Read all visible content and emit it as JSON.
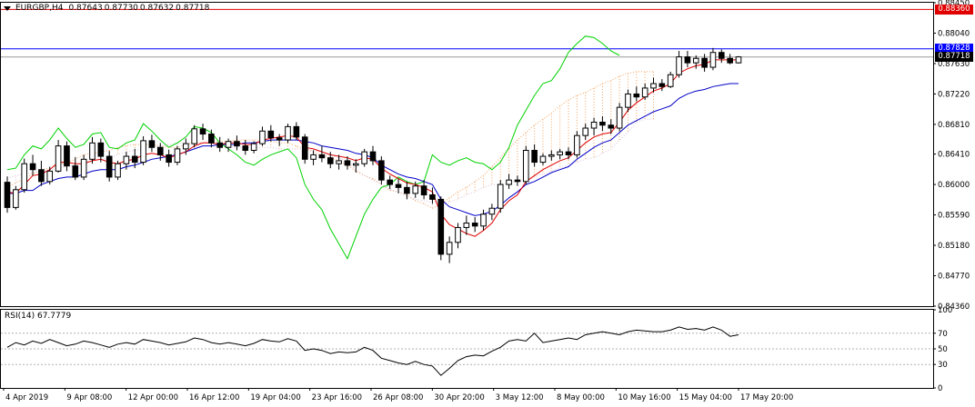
{
  "header": {
    "symbol": "EURGBP,H4",
    "open": "0.87643",
    "high": "0.87730",
    "low": "0.87632",
    "close": "0.87718"
  },
  "rsi_panel": {
    "label": "RSI(14)",
    "value": "67.7779"
  },
  "price_tags": [
    {
      "label": "0.88360",
      "color": "#e00000",
      "text_color": "#ffffff"
    },
    {
      "label": "0.87828",
      "color": "#0000ff",
      "text_color": "#ffffff"
    },
    {
      "label": "0.87718",
      "color": "#000000",
      "text_color": "#ffffff"
    }
  ],
  "chart_data": [
    {
      "type": "candlestick",
      "title": "EURGBP,H4",
      "y_ticks": [
        "0.88450",
        "0.88040",
        "0.87630",
        "0.87220",
        "0.86810",
        "0.86410",
        "0.86000",
        "0.85590",
        "0.85180",
        "0.84770",
        "0.84360"
      ],
      "y_tick_values": [
        0.8845,
        0.8804,
        0.8763,
        0.8722,
        0.8681,
        0.8641,
        0.86,
        0.8559,
        0.8518,
        0.8477,
        0.8436
      ],
      "ylim": [
        0.8436,
        0.8845
      ],
      "x_ticks": [
        "4 Apr 2019",
        "9 Apr 08:00",
        "12 Apr 00:00",
        "16 Apr 12:00",
        "19 Apr 04:00",
        "23 Apr 16:00",
        "26 Apr 08:00",
        "30 Apr 20:00",
        "3 May 12:00",
        "8 May 00:00",
        "10 May 16:00",
        "15 May 04:00",
        "17 May 20:00"
      ],
      "horizontal_lines": [
        {
          "value": 0.8836,
          "color": "#e00000"
        },
        {
          "value": 0.87828,
          "color": "#0000ff"
        },
        {
          "value": 0.87718,
          "color": "#999999"
        }
      ],
      "candles": [
        {
          "o": 0.8603,
          "h": 0.8611,
          "l": 0.8562,
          "c": 0.8569
        },
        {
          "o": 0.8569,
          "h": 0.8598,
          "l": 0.8566,
          "c": 0.8593
        },
        {
          "o": 0.8593,
          "h": 0.8635,
          "l": 0.8589,
          "c": 0.8628
        },
        {
          "o": 0.8628,
          "h": 0.864,
          "l": 0.8612,
          "c": 0.862
        },
        {
          "o": 0.862,
          "h": 0.8632,
          "l": 0.8598,
          "c": 0.8604
        },
        {
          "o": 0.8604,
          "h": 0.8624,
          "l": 0.86,
          "c": 0.8618
        },
        {
          "o": 0.8618,
          "h": 0.866,
          "l": 0.8616,
          "c": 0.8652
        },
        {
          "o": 0.8652,
          "h": 0.8658,
          "l": 0.8618,
          "c": 0.8625
        },
        {
          "o": 0.8625,
          "h": 0.8637,
          "l": 0.8606,
          "c": 0.861
        },
        {
          "o": 0.861,
          "h": 0.864,
          "l": 0.8606,
          "c": 0.8634
        },
        {
          "o": 0.8634,
          "h": 0.8664,
          "l": 0.8628,
          "c": 0.8656
        },
        {
          "o": 0.8656,
          "h": 0.8662,
          "l": 0.863,
          "c": 0.8638
        },
        {
          "o": 0.8638,
          "h": 0.8645,
          "l": 0.8604,
          "c": 0.861
        },
        {
          "o": 0.861,
          "h": 0.8632,
          "l": 0.8606,
          "c": 0.8628
        },
        {
          "o": 0.8628,
          "h": 0.8644,
          "l": 0.862,
          "c": 0.8638
        },
        {
          "o": 0.8638,
          "h": 0.8648,
          "l": 0.8622,
          "c": 0.863
        },
        {
          "o": 0.863,
          "h": 0.8665,
          "l": 0.8626,
          "c": 0.8659
        },
        {
          "o": 0.8659,
          "h": 0.8667,
          "l": 0.8644,
          "c": 0.865
        },
        {
          "o": 0.865,
          "h": 0.8656,
          "l": 0.8632,
          "c": 0.864
        },
        {
          "o": 0.864,
          "h": 0.8647,
          "l": 0.8624,
          "c": 0.863
        },
        {
          "o": 0.863,
          "h": 0.8652,
          "l": 0.8626,
          "c": 0.8648
        },
        {
          "o": 0.8648,
          "h": 0.8662,
          "l": 0.864,
          "c": 0.8655
        },
        {
          "o": 0.8655,
          "h": 0.868,
          "l": 0.865,
          "c": 0.8675
        },
        {
          "o": 0.8675,
          "h": 0.8682,
          "l": 0.866,
          "c": 0.8668
        },
        {
          "o": 0.8668,
          "h": 0.8674,
          "l": 0.865,
          "c": 0.8656
        },
        {
          "o": 0.8656,
          "h": 0.8664,
          "l": 0.8644,
          "c": 0.865
        },
        {
          "o": 0.865,
          "h": 0.8662,
          "l": 0.8644,
          "c": 0.8658
        },
        {
          "o": 0.8658,
          "h": 0.8666,
          "l": 0.8646,
          "c": 0.8652
        },
        {
          "o": 0.8652,
          "h": 0.866,
          "l": 0.864,
          "c": 0.8646
        },
        {
          "o": 0.8646,
          "h": 0.8658,
          "l": 0.8642,
          "c": 0.8655
        },
        {
          "o": 0.8655,
          "h": 0.8678,
          "l": 0.8652,
          "c": 0.8672
        },
        {
          "o": 0.8672,
          "h": 0.868,
          "l": 0.8658,
          "c": 0.8663
        },
        {
          "o": 0.8663,
          "h": 0.8668,
          "l": 0.8652,
          "c": 0.866
        },
        {
          "o": 0.866,
          "h": 0.8682,
          "l": 0.8656,
          "c": 0.8678
        },
        {
          "o": 0.8678,
          "h": 0.8684,
          "l": 0.866,
          "c": 0.8664
        },
        {
          "o": 0.8664,
          "h": 0.8668,
          "l": 0.8628,
          "c": 0.8634
        },
        {
          "o": 0.8634,
          "h": 0.8646,
          "l": 0.8626,
          "c": 0.864
        },
        {
          "o": 0.864,
          "h": 0.8652,
          "l": 0.863,
          "c": 0.8636
        },
        {
          "o": 0.8636,
          "h": 0.8644,
          "l": 0.8622,
          "c": 0.8628
        },
        {
          "o": 0.8628,
          "h": 0.864,
          "l": 0.862,
          "c": 0.8632
        },
        {
          "o": 0.8632,
          "h": 0.8638,
          "l": 0.862,
          "c": 0.8626
        },
        {
          "o": 0.8626,
          "h": 0.8634,
          "l": 0.8616,
          "c": 0.8628
        },
        {
          "o": 0.8628,
          "h": 0.8648,
          "l": 0.8624,
          "c": 0.8644
        },
        {
          "o": 0.8644,
          "h": 0.8652,
          "l": 0.8626,
          "c": 0.8632
        },
        {
          "o": 0.8632,
          "h": 0.8638,
          "l": 0.86,
          "c": 0.8606
        },
        {
          "o": 0.8606,
          "h": 0.8612,
          "l": 0.8594,
          "c": 0.86
        },
        {
          "o": 0.86,
          "h": 0.8608,
          "l": 0.8588,
          "c": 0.8596
        },
        {
          "o": 0.8596,
          "h": 0.8604,
          "l": 0.858,
          "c": 0.8588
        },
        {
          "o": 0.8588,
          "h": 0.8604,
          "l": 0.8582,
          "c": 0.8598
        },
        {
          "o": 0.8598,
          "h": 0.8606,
          "l": 0.858,
          "c": 0.8586
        },
        {
          "o": 0.8586,
          "h": 0.8596,
          "l": 0.8574,
          "c": 0.858
        },
        {
          "o": 0.858,
          "h": 0.8584,
          "l": 0.8498,
          "c": 0.8506
        },
        {
          "o": 0.8506,
          "h": 0.853,
          "l": 0.8494,
          "c": 0.8522
        },
        {
          "o": 0.8522,
          "h": 0.8548,
          "l": 0.8514,
          "c": 0.8542
        },
        {
          "o": 0.8542,
          "h": 0.8558,
          "l": 0.8532,
          "c": 0.8548
        },
        {
          "o": 0.8548,
          "h": 0.8556,
          "l": 0.8536,
          "c": 0.8544
        },
        {
          "o": 0.8544,
          "h": 0.8566,
          "l": 0.8538,
          "c": 0.856
        },
        {
          "o": 0.856,
          "h": 0.8574,
          "l": 0.8552,
          "c": 0.8568
        },
        {
          "o": 0.8568,
          "h": 0.8606,
          "l": 0.8562,
          "c": 0.86
        },
        {
          "o": 0.86,
          "h": 0.8614,
          "l": 0.8594,
          "c": 0.8606
        },
        {
          "o": 0.8606,
          "h": 0.8612,
          "l": 0.8598,
          "c": 0.8604
        },
        {
          "o": 0.8604,
          "h": 0.8652,
          "l": 0.86,
          "c": 0.8646
        },
        {
          "o": 0.8646,
          "h": 0.8654,
          "l": 0.8624,
          "c": 0.863
        },
        {
          "o": 0.863,
          "h": 0.8642,
          "l": 0.8626,
          "c": 0.8638
        },
        {
          "o": 0.8638,
          "h": 0.8646,
          "l": 0.8632,
          "c": 0.864
        },
        {
          "o": 0.864,
          "h": 0.8648,
          "l": 0.8634,
          "c": 0.8644
        },
        {
          "o": 0.8644,
          "h": 0.865,
          "l": 0.8634,
          "c": 0.864
        },
        {
          "o": 0.864,
          "h": 0.8672,
          "l": 0.8636,
          "c": 0.8666
        },
        {
          "o": 0.8666,
          "h": 0.8682,
          "l": 0.866,
          "c": 0.8676
        },
        {
          "o": 0.8676,
          "h": 0.869,
          "l": 0.8666,
          "c": 0.8684
        },
        {
          "o": 0.8684,
          "h": 0.8692,
          "l": 0.8672,
          "c": 0.868
        },
        {
          "o": 0.868,
          "h": 0.8688,
          "l": 0.8668,
          "c": 0.8676
        },
        {
          "o": 0.8676,
          "h": 0.871,
          "l": 0.8672,
          "c": 0.8704
        },
        {
          "o": 0.8704,
          "h": 0.8728,
          "l": 0.8698,
          "c": 0.8722
        },
        {
          "o": 0.8722,
          "h": 0.8732,
          "l": 0.8712,
          "c": 0.8718
        },
        {
          "o": 0.8718,
          "h": 0.8736,
          "l": 0.8714,
          "c": 0.873
        },
        {
          "o": 0.873,
          "h": 0.8744,
          "l": 0.8724,
          "c": 0.8736
        },
        {
          "o": 0.8736,
          "h": 0.8742,
          "l": 0.8726,
          "c": 0.8732
        },
        {
          "o": 0.8732,
          "h": 0.8752,
          "l": 0.873,
          "c": 0.8748
        },
        {
          "o": 0.8748,
          "h": 0.878,
          "l": 0.8744,
          "c": 0.8772
        },
        {
          "o": 0.8772,
          "h": 0.878,
          "l": 0.8758,
          "c": 0.8764
        },
        {
          "o": 0.8764,
          "h": 0.8774,
          "l": 0.8756,
          "c": 0.877
        },
        {
          "o": 0.877,
          "h": 0.8776,
          "l": 0.8752,
          "c": 0.8758
        },
        {
          "o": 0.8758,
          "h": 0.8784,
          "l": 0.8754,
          "c": 0.8778
        },
        {
          "o": 0.8778,
          "h": 0.8782,
          "l": 0.8764,
          "c": 0.877
        },
        {
          "o": 0.877,
          "h": 0.8776,
          "l": 0.8762,
          "c": 0.8764
        },
        {
          "o": 0.8764,
          "h": 0.8773,
          "l": 0.8763,
          "c": 0.8772
        }
      ],
      "tenkan_sen": [
        0.859,
        0.8588,
        0.86,
        0.8612,
        0.8614,
        0.862,
        0.863,
        0.863,
        0.8628,
        0.8628,
        0.8632,
        0.8634,
        0.863,
        0.8628,
        0.8632,
        0.8634,
        0.864,
        0.8642,
        0.864,
        0.8636,
        0.864,
        0.8644,
        0.8652,
        0.8656,
        0.8656,
        0.8654,
        0.8656,
        0.8656,
        0.8654,
        0.8654,
        0.866,
        0.8662,
        0.8664,
        0.8666,
        0.8664,
        0.865,
        0.8648,
        0.8644,
        0.864,
        0.8638,
        0.8636,
        0.8632,
        0.8636,
        0.8634,
        0.8622,
        0.8614,
        0.8608,
        0.8602,
        0.86,
        0.8596,
        0.859,
        0.856,
        0.8546,
        0.854,
        0.8534,
        0.853,
        0.8538,
        0.8548,
        0.8566,
        0.8578,
        0.8586,
        0.8604,
        0.8612,
        0.862,
        0.8626,
        0.8632,
        0.8636,
        0.8646,
        0.8656,
        0.8664,
        0.8668,
        0.867,
        0.8684,
        0.87,
        0.871,
        0.8718,
        0.8726,
        0.873,
        0.8736,
        0.875,
        0.8756,
        0.876,
        0.8762,
        0.8768,
        0.8768,
        0.8768,
        0.8768
      ],
      "kijun_sen": [
        0.8588,
        0.8588,
        0.8592,
        0.8592,
        0.86,
        0.8604,
        0.8608,
        0.861,
        0.861,
        0.8614,
        0.8618,
        0.862,
        0.862,
        0.862,
        0.8624,
        0.8626,
        0.863,
        0.8634,
        0.8636,
        0.8638,
        0.864,
        0.8644,
        0.8648,
        0.8652,
        0.8652,
        0.8654,
        0.8654,
        0.8654,
        0.8656,
        0.8656,
        0.8658,
        0.866,
        0.866,
        0.866,
        0.866,
        0.8658,
        0.8656,
        0.8652,
        0.865,
        0.8648,
        0.8646,
        0.8642,
        0.864,
        0.8636,
        0.8626,
        0.862,
        0.8614,
        0.861,
        0.8608,
        0.8604,
        0.86,
        0.858,
        0.857,
        0.8566,
        0.8562,
        0.8558,
        0.856,
        0.8564,
        0.8572,
        0.8582,
        0.859,
        0.86,
        0.8604,
        0.861,
        0.8616,
        0.862,
        0.8624,
        0.8634,
        0.8642,
        0.865,
        0.8656,
        0.866,
        0.867,
        0.868,
        0.8686,
        0.8692,
        0.8698,
        0.8702,
        0.8706,
        0.8716,
        0.8722,
        0.8726,
        0.8728,
        0.8732,
        0.8734,
        0.8736,
        0.8736
      ],
      "chikou_span": [
        0.862,
        0.8622,
        0.864,
        0.8652,
        0.8648,
        0.866,
        0.8676,
        0.8662,
        0.865,
        0.8654,
        0.8668,
        0.867,
        0.865,
        0.8648,
        0.8656,
        0.866,
        0.8682,
        0.8672,
        0.866,
        0.865,
        0.8656,
        0.8664,
        0.8678,
        0.8676,
        0.867,
        0.8656,
        0.8648,
        0.864,
        0.863,
        0.8626,
        0.8634,
        0.864,
        0.8644,
        0.8648,
        0.8636,
        0.86,
        0.858,
        0.8566,
        0.854,
        0.852,
        0.85,
        0.853,
        0.856,
        0.858,
        0.8596,
        0.86,
        0.861,
        0.8604,
        0.86,
        0.8604,
        0.864,
        0.863,
        0.8626,
        0.8632,
        0.8636,
        0.863,
        0.8628,
        0.862,
        0.863,
        0.865,
        0.868,
        0.87,
        0.872,
        0.8736,
        0.874,
        0.8756,
        0.8778,
        0.879,
        0.88,
        0.8798,
        0.879,
        0.878,
        0.8774
      ],
      "senkou_span_a": [
        0.8598,
        0.8598,
        0.8596,
        0.8596,
        0.859,
        0.8586,
        0.858,
        0.8578,
        0.8586,
        0.859,
        0.8596,
        0.8602,
        0.8608,
        0.8614,
        0.862,
        0.8622,
        0.8626,
        0.863,
        0.8634,
        0.864,
        0.8642,
        0.8644,
        0.8646,
        0.865,
        0.8652,
        0.8654,
        0.8654,
        0.8654,
        0.8652,
        0.865,
        0.865,
        0.8654,
        0.8656,
        0.8656,
        0.8658,
        0.8658,
        0.8658,
        0.866,
        0.866,
        0.866,
        0.866,
        0.8658,
        0.8656,
        0.8656,
        0.8652,
        0.8648,
        0.8644,
        0.864,
        0.8636,
        0.8632,
        0.8626,
        0.8618,
        0.8612,
        0.8608,
        0.86,
        0.8592,
        0.859,
        0.8586,
        0.8578,
        0.8574,
        0.8568,
        0.8574,
        0.8582,
        0.859,
        0.8596,
        0.8604,
        0.8612,
        0.8624,
        0.8636,
        0.8648,
        0.866,
        0.867,
        0.868,
        0.8688,
        0.8696,
        0.8706,
        0.8714,
        0.872,
        0.8724,
        0.873,
        0.8736,
        0.874,
        0.8746,
        0.875,
        0.8752,
        0.8752,
        0.8752
      ],
      "senkou_span_b": [
        0.8588,
        0.8588,
        0.8588,
        0.8588,
        0.8588,
        0.8588,
        0.8592,
        0.8596,
        0.86,
        0.8604,
        0.8608,
        0.8612,
        0.8614,
        0.8616,
        0.8618,
        0.862,
        0.8622,
        0.8624,
        0.8626,
        0.863,
        0.8632,
        0.8634,
        0.8636,
        0.864,
        0.8644,
        0.8646,
        0.8648,
        0.865,
        0.8652,
        0.8654,
        0.8656,
        0.8656,
        0.8656,
        0.8656,
        0.8656,
        0.8654,
        0.8652,
        0.865,
        0.865,
        0.865,
        0.865,
        0.865,
        0.8648,
        0.8648,
        0.8648,
        0.8648,
        0.8646,
        0.8644,
        0.864,
        0.8636,
        0.863,
        0.862,
        0.8612,
        0.8606,
        0.86,
        0.8594,
        0.859,
        0.8584,
        0.858,
        0.8578,
        0.8576,
        0.8576,
        0.8576,
        0.858,
        0.8586,
        0.859,
        0.8596,
        0.86,
        0.86,
        0.8602,
        0.8604,
        0.8606,
        0.861,
        0.8614,
        0.8618,
        0.8622,
        0.8626,
        0.863,
        0.8634,
        0.8636,
        0.8642,
        0.8648,
        0.866,
        0.867,
        0.8684,
        0.8688,
        0.8688
      ],
      "series_colors": {
        "up": "#ffffff",
        "down": "#000000",
        "tenkan": "#e00000",
        "kijun": "#0000c8",
        "chikou": "#00d200",
        "kumo_bull": "#f4a460",
        "kumo_bear": "#d8bfd8"
      }
    },
    {
      "type": "line",
      "title": "RSI(14) 67.7779",
      "y_ticks": [
        "100",
        "70",
        "50",
        "30",
        "0"
      ],
      "y_tick_values": [
        100,
        70,
        50,
        30,
        0
      ],
      "ylim": [
        0,
        100
      ],
      "levels": [
        70,
        50,
        30
      ],
      "values": [
        52,
        58,
        55,
        60,
        57,
        62,
        58,
        54,
        56,
        60,
        58,
        55,
        52,
        56,
        58,
        56,
        62,
        60,
        58,
        55,
        57,
        59,
        64,
        62,
        58,
        56,
        58,
        56,
        54,
        57,
        62,
        60,
        59,
        63,
        60,
        48,
        50,
        48,
        44,
        46,
        45,
        46,
        52,
        48,
        38,
        35,
        32,
        30,
        34,
        30,
        28,
        16,
        25,
        35,
        40,
        42,
        41,
        47,
        52,
        60,
        62,
        60,
        70,
        58,
        60,
        62,
        64,
        62,
        68,
        70,
        72,
        70,
        68,
        72,
        74,
        73,
        72,
        72,
        74,
        78,
        75,
        76,
        74,
        78,
        74,
        66,
        68
      ]
    }
  ]
}
